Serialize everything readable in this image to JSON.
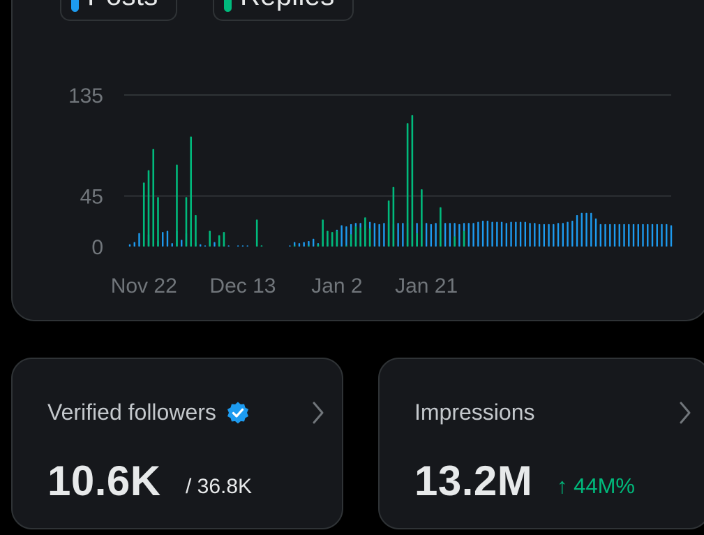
{
  "legend": {
    "posts_label": "Posts",
    "replies_label": "Replies",
    "posts_color": "#1d9bf0",
    "replies_color": "#00ba7c",
    "info_icon": "info-icon"
  },
  "chart_data": {
    "type": "bar",
    "stacked": false,
    "grid": true,
    "ylim": [
      0,
      135
    ],
    "yticks": [
      "135",
      "45",
      "0"
    ],
    "ytick_values": [
      135,
      45,
      0
    ],
    "xticks": [
      "Nov 22",
      "Dec 13",
      "Jan 2",
      "Jan 21"
    ],
    "xtick_index": [
      3,
      24,
      44,
      63
    ],
    "series": [
      {
        "name": "Posts",
        "color": "#1d9bf0",
        "values": [
          2,
          4,
          12,
          10,
          11,
          13,
          5,
          13,
          14,
          3,
          14,
          6,
          12,
          14,
          4,
          2,
          1,
          4,
          4,
          3,
          2,
          1,
          0,
          1,
          1,
          1,
          0,
          1,
          1,
          0,
          0,
          0,
          0,
          0,
          1,
          4,
          3,
          4,
          5,
          7,
          3,
          4,
          4,
          6,
          15,
          19,
          18,
          20,
          21,
          21,
          20,
          22,
          21,
          20,
          21,
          21,
          20,
          21,
          21,
          21,
          21,
          21,
          21,
          21,
          20,
          21,
          21,
          21,
          21,
          21,
          20,
          21,
          21,
          21,
          22,
          23,
          23,
          22,
          22,
          22,
          21,
          22,
          22,
          22,
          22,
          21,
          21,
          20,
          20,
          20,
          20,
          21,
          21,
          22,
          23,
          28,
          30,
          30,
          30,
          25,
          20,
          20,
          20,
          20,
          20,
          20,
          20,
          20,
          20,
          20,
          20,
          20,
          20,
          20,
          20,
          19
        ]
      },
      {
        "name": "Replies",
        "color": "#00ba7c",
        "values": [
          0,
          0,
          0,
          57,
          68,
          87,
          44,
          0,
          0,
          0,
          73,
          0,
          44,
          98,
          28,
          0,
          0,
          14,
          0,
          10,
          13,
          0,
          0,
          0,
          0,
          0,
          0,
          24,
          1,
          0,
          0,
          0,
          0,
          0,
          0,
          1,
          0,
          0,
          1,
          0,
          2,
          24,
          14,
          13,
          14,
          0,
          1,
          11,
          18,
          17,
          26,
          16,
          0,
          0,
          0,
          41,
          53,
          0,
          0,
          110,
          117,
          12,
          51,
          0,
          0,
          0,
          35,
          0,
          0,
          9,
          0,
          14,
          0,
          0,
          0,
          0,
          0,
          0,
          0,
          0,
          0,
          0,
          0,
          0,
          0,
          0,
          0,
          0,
          0,
          0,
          0,
          0,
          0,
          0,
          0,
          0,
          0,
          0,
          0,
          0,
          0,
          0,
          0,
          0,
          0,
          0,
          0,
          0,
          0,
          0,
          0,
          0,
          0,
          0,
          0,
          0
        ]
      }
    ]
  },
  "cards": {
    "followers": {
      "title": "Verified followers",
      "value": "10.6K",
      "sub": "/ 36.8K",
      "badge_icon": "verified-badge-icon",
      "badge_color": "#1d9bf0"
    },
    "impressions": {
      "title": "Impressions",
      "value": "13.2M",
      "delta": "↑ 44M%",
      "delta_color": "#00ba7c"
    }
  }
}
